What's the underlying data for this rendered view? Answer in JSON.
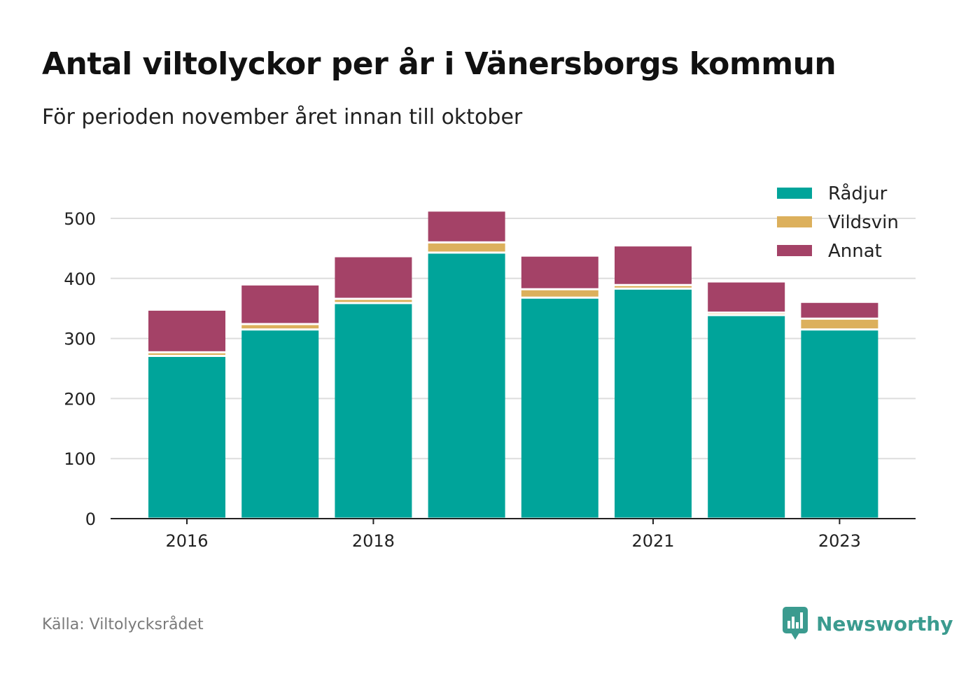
{
  "title": "Antal viltolyckor per år i Vänersborgs kommun",
  "subtitle": "För perioden november året innan till oktober",
  "source": "Källa: Viltolycksrådet",
  "brand": {
    "name": "Newsworthy",
    "icon": "newsworthy-logo-icon",
    "color": "#3b9b8f"
  },
  "chart_data": {
    "type": "bar",
    "stacked": true,
    "categories": [
      "2016",
      "2017",
      "2018",
      "2019",
      "2020",
      "2021",
      "2022",
      "2023"
    ],
    "x_tick_labels": [
      "2016",
      "",
      "2018",
      "",
      "",
      "2021",
      "",
      "2023"
    ],
    "series": [
      {
        "name": "Rådjur",
        "color": "#00a49a",
        "values": [
          271,
          315,
          359,
          443,
          368,
          383,
          339,
          315
        ]
      },
      {
        "name": "Vildsvin",
        "color": "#dcb05c",
        "values": [
          6,
          9,
          7,
          17,
          14,
          6,
          4,
          18
        ]
      },
      {
        "name": "Annat",
        "color": "#a44267",
        "values": [
          71,
          66,
          71,
          53,
          56,
          66,
          52,
          28
        ]
      }
    ],
    "yticks": [
      0,
      100,
      200,
      300,
      400,
      500
    ],
    "ylim": [
      0,
      515
    ],
    "grid": true,
    "legend_position": "top-right"
  }
}
